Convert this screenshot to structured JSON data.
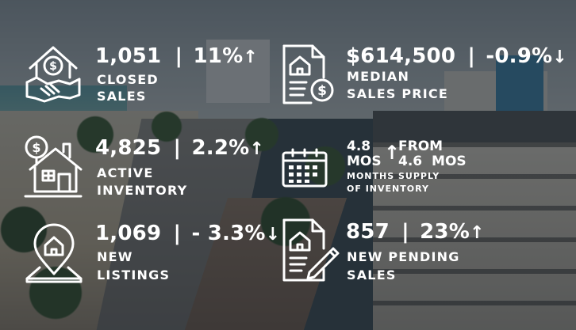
{
  "stats": {
    "closed_sales": {
      "value": "1,051",
      "sep": "|",
      "change": "11%",
      "direction": "up",
      "label_line1": "CLOSED",
      "label_line2": "SALES",
      "icon": "house-handshake-dollar-icon"
    },
    "median_price": {
      "value": "$614,500",
      "sep": "|",
      "change": "-0.9%",
      "direction": "down",
      "label_line1": "MEDIAN",
      "label_line2": "SALES PRICE",
      "icon": "document-house-dollar-icon"
    },
    "active_inventory": {
      "value": "4,825",
      "sep": "|",
      "change": "2.2%",
      "direction": "up",
      "label_line1": "ACTIVE",
      "label_line2": "INVENTORY",
      "icon": "house-dollar-balloon-icon"
    },
    "months_supply": {
      "current": "4.8",
      "current_unit": "MOS",
      "from_label": "FROM",
      "previous": "4.6",
      "previous_unit": "MOS",
      "direction": "up",
      "label_line1": "MONTHS SUPPLY",
      "label_line2": "OF INVENTORY",
      "icon": "calendar-icon"
    },
    "new_listings": {
      "value": "1,069",
      "sep": "|",
      "change": "- 3.3%",
      "direction": "down",
      "label_line1": "NEW",
      "label_line2": "LISTINGS",
      "icon": "location-pin-house-icon"
    },
    "new_pending": {
      "value": "857",
      "sep": "|",
      "change": "23%",
      "direction": "up",
      "label_line1": "NEW PENDING",
      "label_line2": "SALES",
      "icon": "contract-pen-house-icon"
    }
  },
  "glyphs": {
    "up": "↑",
    "down": "↓"
  },
  "colors": {
    "text": "#ffffff",
    "overlay": "#161e24"
  }
}
